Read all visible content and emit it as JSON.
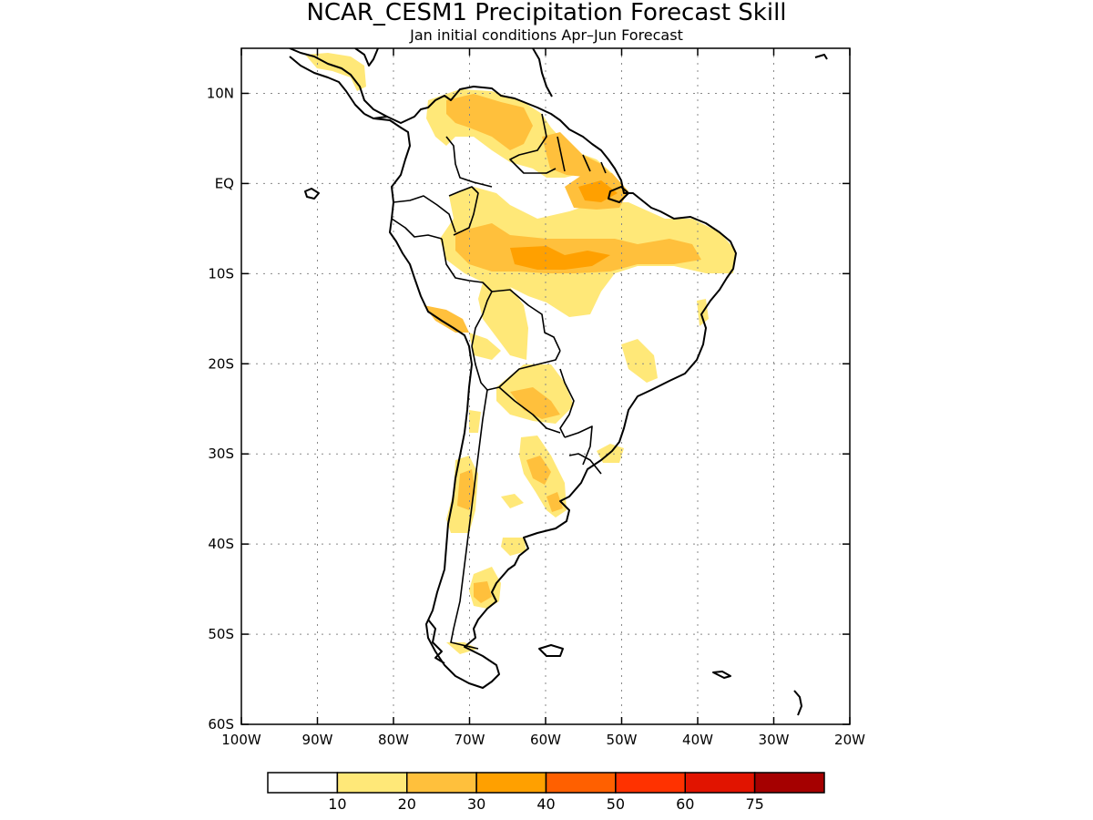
{
  "figure": {
    "title": "NCAR_CESM1 Precipitation Forecast Skill",
    "subtitle": "Jan initial conditions  Apr–Jun Forecast"
  },
  "map": {
    "lon_range": [
      -100,
      -20
    ],
    "lat_range": [
      -60,
      15
    ],
    "x_ticks": [
      {
        "value": -100,
        "label": "100W"
      },
      {
        "value": -90,
        "label": "90W"
      },
      {
        "value": -80,
        "label": "80W"
      },
      {
        "value": -70,
        "label": "70W"
      },
      {
        "value": -60,
        "label": "60W"
      },
      {
        "value": -50,
        "label": "50W"
      },
      {
        "value": -40,
        "label": "40W"
      },
      {
        "value": -30,
        "label": "30W"
      },
      {
        "value": -20,
        "label": "20W"
      }
    ],
    "y_ticks": [
      {
        "value": 10,
        "label": "10N"
      },
      {
        "value": 0,
        "label": "EQ"
      },
      {
        "value": -10,
        "label": "10S"
      },
      {
        "value": -20,
        "label": "20S"
      },
      {
        "value": -30,
        "label": "30S"
      },
      {
        "value": -40,
        "label": "40S"
      },
      {
        "value": -50,
        "label": "50S"
      },
      {
        "value": -60,
        "label": "60S"
      }
    ],
    "grid": true
  },
  "colorbar": {
    "colors": [
      "#ffffff",
      "#ffe878",
      "#ffc03c",
      "#ffa000",
      "#ff6000",
      "#ff3200",
      "#e11400",
      "#a50000"
    ],
    "labels": [
      "10",
      "20",
      "30",
      "40",
      "50",
      "60",
      "75"
    ]
  }
}
